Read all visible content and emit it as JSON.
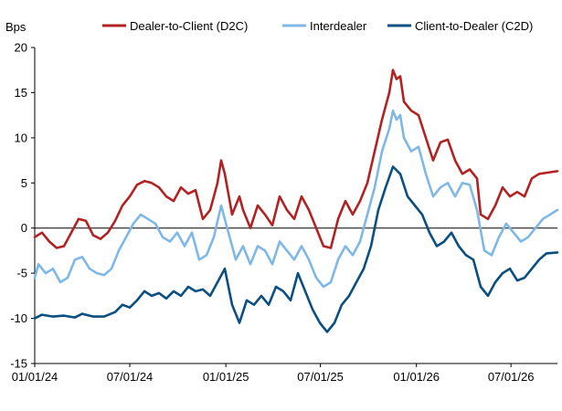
{
  "chart_data": {
    "type": "line",
    "title": "",
    "xlabel": "",
    "ylabel": "Bps",
    "xlim": [
      "2024-01-01",
      "2026-09-28"
    ],
    "ylim": [
      -15,
      20
    ],
    "yticks": [
      -15,
      -10,
      -5,
      0,
      5,
      10,
      15,
      20
    ],
    "xticks": [
      {
        "date": "2024-01-01",
        "label": "01/01/24"
      },
      {
        "date": "2024-07-01",
        "label": "07/01/24"
      },
      {
        "date": "2025-01-01",
        "label": "01/01/25"
      },
      {
        "date": "2025-07-01",
        "label": "07/01/25"
      },
      {
        "date": "2026-01-01",
        "label": "01/01/26"
      },
      {
        "date": "2026-07-01",
        "label": "07/01/26"
      }
    ],
    "grid": false,
    "zero_line": true,
    "legend_position": "top",
    "series": [
      {
        "name": "Dealer-to-Client (D2C)",
        "color": "#b22222",
        "points": [
          [
            "2024-01-01",
            -1.0
          ],
          [
            "2024-01-15",
            -0.5
          ],
          [
            "2024-01-29",
            -1.5
          ],
          [
            "2024-02-12",
            -2.2
          ],
          [
            "2024-02-26",
            -2.0
          ],
          [
            "2024-03-11",
            -0.5
          ],
          [
            "2024-03-25",
            1.0
          ],
          [
            "2024-04-08",
            0.8
          ],
          [
            "2024-04-22",
            -0.8
          ],
          [
            "2024-05-06",
            -1.2
          ],
          [
            "2024-05-20",
            -0.5
          ],
          [
            "2024-06-03",
            0.8
          ],
          [
            "2024-06-17",
            2.5
          ],
          [
            "2024-07-01",
            3.5
          ],
          [
            "2024-07-15",
            4.8
          ],
          [
            "2024-07-29",
            5.2
          ],
          [
            "2024-08-12",
            5.0
          ],
          [
            "2024-08-26",
            4.5
          ],
          [
            "2024-09-09",
            3.5
          ],
          [
            "2024-09-23",
            3.0
          ],
          [
            "2024-10-07",
            4.5
          ],
          [
            "2024-10-21",
            3.8
          ],
          [
            "2024-11-04",
            4.2
          ],
          [
            "2024-11-18",
            1.0
          ],
          [
            "2024-12-02",
            2.0
          ],
          [
            "2024-12-16",
            5.0
          ],
          [
            "2024-12-23",
            7.5
          ],
          [
            "2024-12-30",
            6.0
          ],
          [
            "2025-01-13",
            1.5
          ],
          [
            "2025-01-27",
            3.5
          ],
          [
            "2025-02-03",
            2.0
          ],
          [
            "2025-02-17",
            0.0
          ],
          [
            "2025-03-03",
            2.5
          ],
          [
            "2025-03-17",
            1.5
          ],
          [
            "2025-03-31",
            0.3
          ],
          [
            "2025-04-14",
            3.5
          ],
          [
            "2025-04-28",
            2.0
          ],
          [
            "2025-05-12",
            1.0
          ],
          [
            "2025-05-26",
            3.5
          ],
          [
            "2025-06-09",
            2.0
          ],
          [
            "2025-06-23",
            0.0
          ],
          [
            "2025-07-07",
            -2.0
          ],
          [
            "2025-07-21",
            -2.2
          ],
          [
            "2025-08-04",
            1.0
          ],
          [
            "2025-08-18",
            3.0
          ],
          [
            "2025-09-01",
            1.5
          ],
          [
            "2025-09-15",
            3.0
          ],
          [
            "2025-09-29",
            5.0
          ],
          [
            "2025-10-13",
            8.5
          ],
          [
            "2025-10-27",
            12.0
          ],
          [
            "2025-11-10",
            15.0
          ],
          [
            "2025-11-17",
            17.5
          ],
          [
            "2025-11-24",
            16.5
          ],
          [
            "2025-12-01",
            16.8
          ],
          [
            "2025-12-08",
            14.0
          ],
          [
            "2025-12-22",
            13.0
          ],
          [
            "2026-01-05",
            12.5
          ],
          [
            "2026-01-19",
            10.0
          ],
          [
            "2026-02-02",
            7.5
          ],
          [
            "2026-02-16",
            9.5
          ],
          [
            "2026-03-02",
            9.8
          ],
          [
            "2026-03-16",
            7.5
          ],
          [
            "2026-03-30",
            6.0
          ],
          [
            "2026-04-13",
            6.5
          ],
          [
            "2026-04-27",
            5.5
          ],
          [
            "2026-05-04",
            1.5
          ],
          [
            "2026-05-18",
            1.0
          ],
          [
            "2026-06-01",
            2.5
          ],
          [
            "2026-06-15",
            4.5
          ],
          [
            "2026-06-29",
            3.5
          ],
          [
            "2026-07-13",
            4.0
          ],
          [
            "2026-07-27",
            3.5
          ],
          [
            "2026-08-10",
            5.5
          ],
          [
            "2026-08-24",
            6.0
          ],
          [
            "2026-09-28",
            6.3
          ]
        ]
      },
      {
        "name": "Interdealer",
        "color": "#7fb8e6",
        "points": [
          [
            "2024-01-01",
            -5.5
          ],
          [
            "2024-01-08",
            -4.0
          ],
          [
            "2024-01-22",
            -5.0
          ],
          [
            "2024-02-05",
            -4.5
          ],
          [
            "2024-02-19",
            -6.0
          ],
          [
            "2024-03-04",
            -5.5
          ],
          [
            "2024-03-18",
            -3.5
          ],
          [
            "2024-04-01",
            -3.2
          ],
          [
            "2024-04-15",
            -4.5
          ],
          [
            "2024-04-29",
            -5.0
          ],
          [
            "2024-05-13",
            -5.2
          ],
          [
            "2024-05-27",
            -4.5
          ],
          [
            "2024-06-10",
            -2.5
          ],
          [
            "2024-06-24",
            -1.0
          ],
          [
            "2024-07-08",
            0.5
          ],
          [
            "2024-07-22",
            1.5
          ],
          [
            "2024-08-05",
            1.0
          ],
          [
            "2024-08-19",
            0.5
          ],
          [
            "2024-09-02",
            -1.0
          ],
          [
            "2024-09-16",
            -1.5
          ],
          [
            "2024-09-30",
            -0.5
          ],
          [
            "2024-10-14",
            -2.0
          ],
          [
            "2024-10-28",
            -0.5
          ],
          [
            "2024-11-11",
            -3.5
          ],
          [
            "2024-11-25",
            -3.0
          ],
          [
            "2024-12-09",
            -1.0
          ],
          [
            "2024-12-23",
            2.5
          ],
          [
            "2025-01-06",
            -0.5
          ],
          [
            "2025-01-20",
            -3.5
          ],
          [
            "2025-02-03",
            -2.0
          ],
          [
            "2025-02-17",
            -4.0
          ],
          [
            "2025-03-03",
            -2.0
          ],
          [
            "2025-03-17",
            -2.5
          ],
          [
            "2025-03-31",
            -4.0
          ],
          [
            "2025-04-14",
            -1.5
          ],
          [
            "2025-04-28",
            -2.5
          ],
          [
            "2025-05-12",
            -3.5
          ],
          [
            "2025-05-26",
            -2.0
          ],
          [
            "2025-06-09",
            -3.5
          ],
          [
            "2025-06-23",
            -5.5
          ],
          [
            "2025-07-07",
            -6.5
          ],
          [
            "2025-07-21",
            -6.0
          ],
          [
            "2025-08-04",
            -3.5
          ],
          [
            "2025-08-18",
            -2.0
          ],
          [
            "2025-09-01",
            -3.0
          ],
          [
            "2025-09-15",
            -1.5
          ],
          [
            "2025-09-29",
            1.5
          ],
          [
            "2025-10-13",
            4.5
          ],
          [
            "2025-10-27",
            8.5
          ],
          [
            "2025-11-10",
            11.0
          ],
          [
            "2025-11-17",
            13.0
          ],
          [
            "2025-11-24",
            12.0
          ],
          [
            "2025-12-01",
            12.5
          ],
          [
            "2025-12-08",
            10.0
          ],
          [
            "2025-12-22",
            8.5
          ],
          [
            "2026-01-05",
            9.0
          ],
          [
            "2026-01-19",
            6.0
          ],
          [
            "2026-02-02",
            3.5
          ],
          [
            "2026-02-16",
            4.5
          ],
          [
            "2026-03-02",
            5.0
          ],
          [
            "2026-03-16",
            3.5
          ],
          [
            "2026-03-30",
            5.0
          ],
          [
            "2026-04-13",
            4.8
          ],
          [
            "2026-04-27",
            2.0
          ],
          [
            "2026-05-11",
            -2.5
          ],
          [
            "2026-05-25",
            -3.0
          ],
          [
            "2026-06-08",
            -1.0
          ],
          [
            "2026-06-22",
            0.5
          ],
          [
            "2026-07-06",
            -0.5
          ],
          [
            "2026-07-20",
            -1.5
          ],
          [
            "2026-08-03",
            -1.0
          ],
          [
            "2026-08-17",
            0.0
          ],
          [
            "2026-08-31",
            1.0
          ],
          [
            "2026-09-14",
            1.5
          ],
          [
            "2026-09-28",
            2.0
          ]
        ]
      },
      {
        "name": "Client-to-Dealer (C2D)",
        "color": "#0b4f82",
        "points": [
          [
            "2024-01-01",
            -10.0
          ],
          [
            "2024-01-15",
            -9.6
          ],
          [
            "2024-02-05",
            -9.8
          ],
          [
            "2024-02-26",
            -9.7
          ],
          [
            "2024-03-18",
            -9.9
          ],
          [
            "2024-04-01",
            -9.5
          ],
          [
            "2024-04-22",
            -9.8
          ],
          [
            "2024-05-13",
            -9.8
          ],
          [
            "2024-06-03",
            -9.3
          ],
          [
            "2024-06-17",
            -8.5
          ],
          [
            "2024-07-01",
            -8.8
          ],
          [
            "2024-07-15",
            -8.0
          ],
          [
            "2024-07-29",
            -7.0
          ],
          [
            "2024-08-12",
            -7.5
          ],
          [
            "2024-08-26",
            -7.2
          ],
          [
            "2024-09-09",
            -7.8
          ],
          [
            "2024-09-23",
            -7.0
          ],
          [
            "2024-10-07",
            -7.5
          ],
          [
            "2024-10-21",
            -6.5
          ],
          [
            "2024-11-04",
            -7.0
          ],
          [
            "2024-11-18",
            -6.8
          ],
          [
            "2024-12-02",
            -7.5
          ],
          [
            "2024-12-16",
            -6.0
          ],
          [
            "2024-12-30",
            -4.5
          ],
          [
            "2025-01-13",
            -8.5
          ],
          [
            "2025-01-27",
            -10.5
          ],
          [
            "2025-02-10",
            -8.0
          ],
          [
            "2025-02-24",
            -8.5
          ],
          [
            "2025-03-10",
            -7.5
          ],
          [
            "2025-03-24",
            -8.5
          ],
          [
            "2025-04-07",
            -6.5
          ],
          [
            "2025-04-21",
            -7.0
          ],
          [
            "2025-05-05",
            -8.0
          ],
          [
            "2025-05-19",
            -5.0
          ],
          [
            "2025-06-02",
            -7.0
          ],
          [
            "2025-06-16",
            -9.0
          ],
          [
            "2025-06-30",
            -10.5
          ],
          [
            "2025-07-14",
            -11.5
          ],
          [
            "2025-07-28",
            -10.5
          ],
          [
            "2025-08-11",
            -8.5
          ],
          [
            "2025-08-25",
            -7.5
          ],
          [
            "2025-09-08",
            -6.0
          ],
          [
            "2025-09-22",
            -4.5
          ],
          [
            "2025-10-06",
            -2.0
          ],
          [
            "2025-10-20",
            2.0
          ],
          [
            "2025-11-03",
            4.5
          ],
          [
            "2025-11-17",
            6.8
          ],
          [
            "2025-12-01",
            6.0
          ],
          [
            "2025-12-15",
            3.5
          ],
          [
            "2025-12-29",
            2.5
          ],
          [
            "2026-01-12",
            1.5
          ],
          [
            "2026-01-26",
            -0.5
          ],
          [
            "2026-02-09",
            -2.0
          ],
          [
            "2026-02-23",
            -1.5
          ],
          [
            "2026-03-09",
            -0.5
          ],
          [
            "2026-03-23",
            -2.0
          ],
          [
            "2026-04-06",
            -3.0
          ],
          [
            "2026-04-20",
            -3.5
          ],
          [
            "2026-05-04",
            -6.5
          ],
          [
            "2026-05-18",
            -7.5
          ],
          [
            "2026-06-01",
            -6.0
          ],
          [
            "2026-06-15",
            -5.0
          ],
          [
            "2026-06-29",
            -4.5
          ],
          [
            "2026-07-13",
            -5.8
          ],
          [
            "2026-07-27",
            -5.5
          ],
          [
            "2026-08-10",
            -4.5
          ],
          [
            "2026-08-24",
            -3.5
          ],
          [
            "2026-09-07",
            -2.8
          ],
          [
            "2026-09-28",
            -2.7
          ]
        ]
      }
    ]
  }
}
